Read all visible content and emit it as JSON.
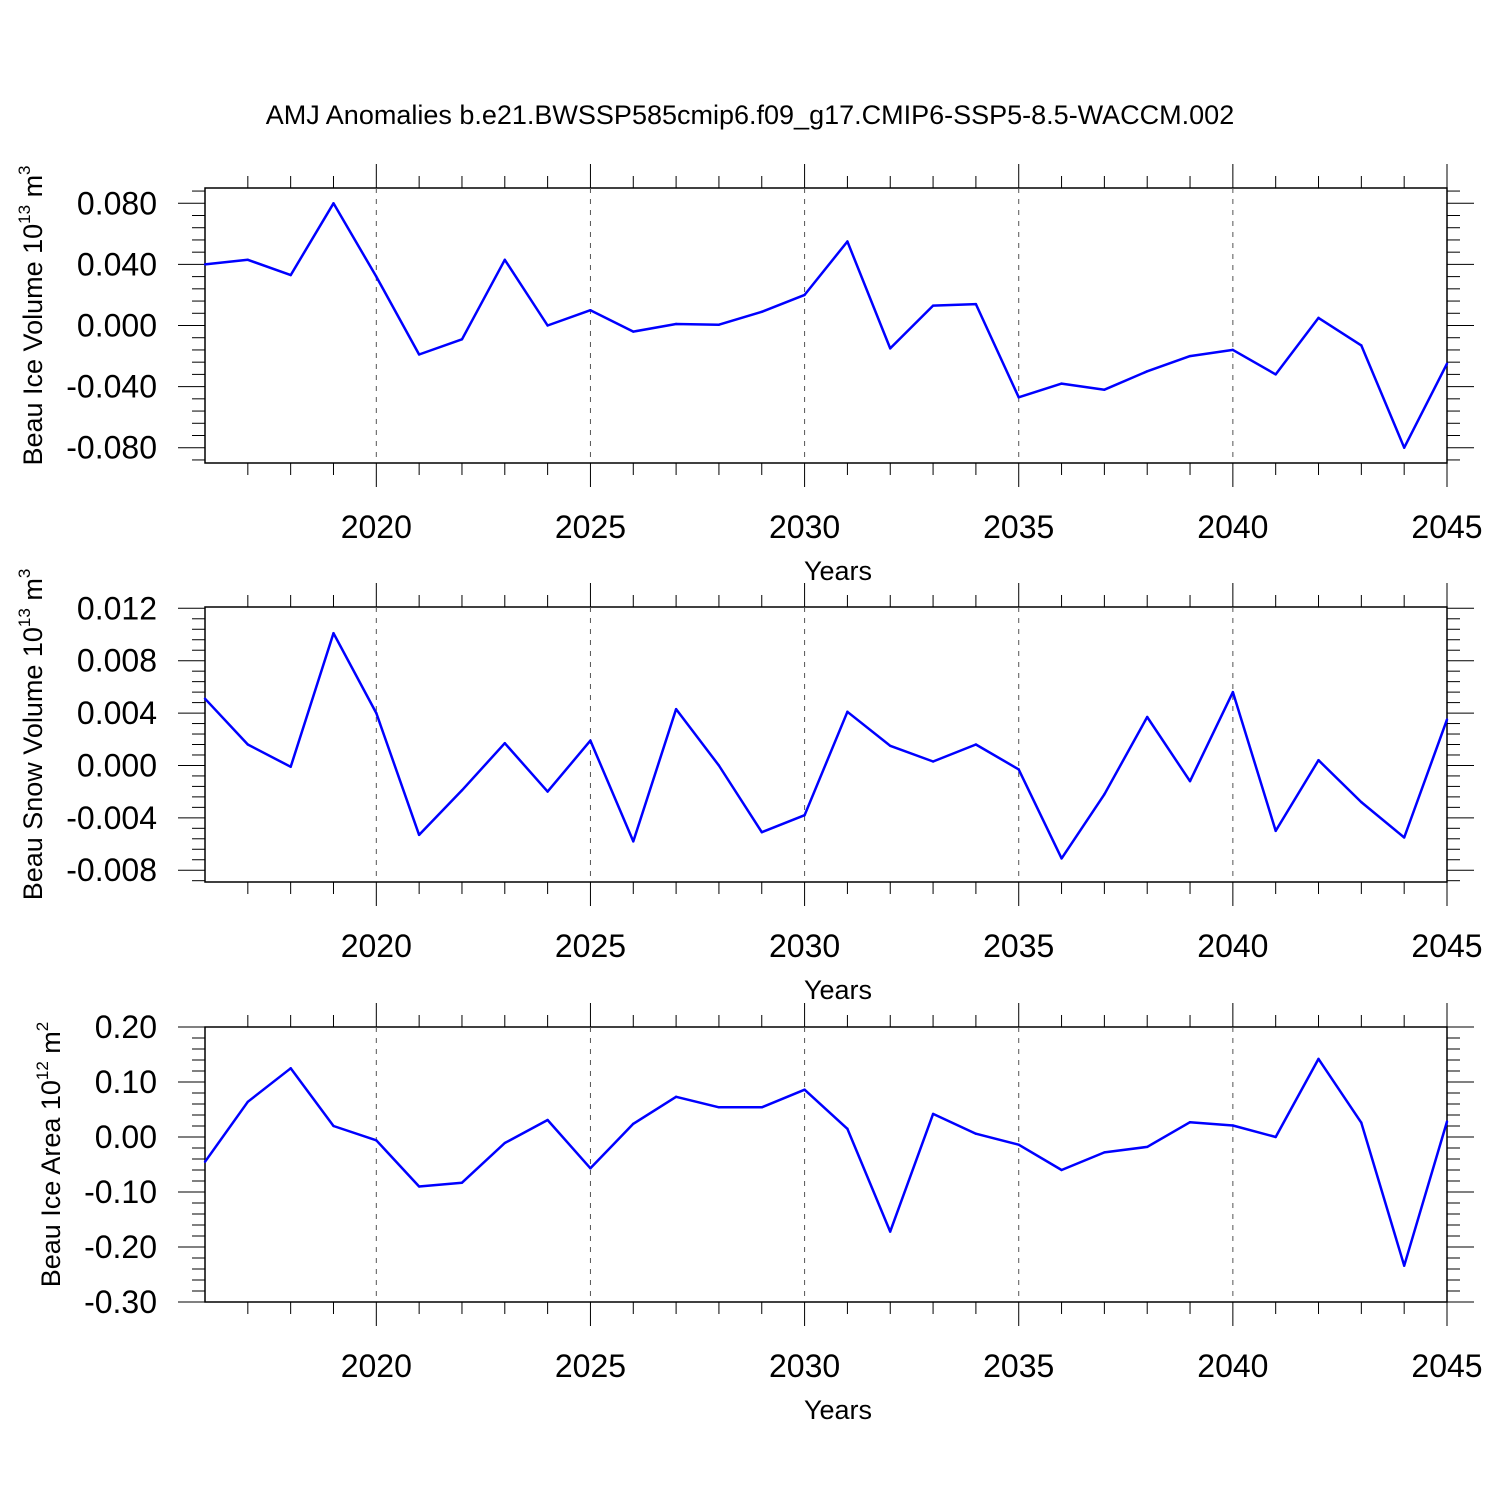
{
  "title": "AMJ Anomalies b.e21.BWSSP585cmip6.f09_g17.CMIP6-SSP5-8.5-WACCM.002",
  "colors": {
    "series": "#0000ff",
    "axis": "#000000",
    "grid": "#555555",
    "background": "#ffffff"
  },
  "chart_data": [
    {
      "type": "line",
      "xlabel": "Years",
      "ylabel": {
        "text": "Beau Ice Volume 10",
        "exp": "13",
        "unit": " m",
        "unit_exp": "3"
      },
      "xlim": [
        2016,
        2045
      ],
      "ylim": [
        -0.09,
        0.09
      ],
      "xticks": [
        2020,
        2025,
        2030,
        2035,
        2040,
        2045
      ],
      "yticks": [
        -0.08,
        -0.04,
        0.0,
        0.04,
        0.08
      ],
      "ytick_labels": [
        "-0.080",
        "-0.040",
        "0.000",
        "0.040",
        "0.080"
      ],
      "grid": "vertical dashed at major x ticks",
      "x": [
        2016,
        2017,
        2018,
        2019,
        2020,
        2021,
        2022,
        2023,
        2024,
        2025,
        2026,
        2027,
        2028,
        2029,
        2030,
        2031,
        2032,
        2033,
        2034,
        2035,
        2036,
        2037,
        2038,
        2039,
        2040,
        2041,
        2042,
        2043,
        2044,
        2045
      ],
      "values": [
        0.04,
        0.043,
        0.033,
        0.08,
        0.032,
        -0.019,
        -0.009,
        0.043,
        0.0,
        0.01,
        -0.004,
        0.001,
        0.0005,
        0.009,
        0.02,
        0.055,
        -0.015,
        0.013,
        0.014,
        -0.047,
        -0.038,
        -0.042,
        -0.03,
        -0.02,
        -0.016,
        -0.032,
        0.005,
        -0.013,
        -0.08,
        -0.025
      ]
    },
    {
      "type": "line",
      "xlabel": "Years",
      "ylabel": {
        "text": "Beau Snow Volume 10",
        "exp": "13",
        "unit": " m",
        "unit_exp": "3"
      },
      "xlim": [
        2016,
        2045
      ],
      "ylim": [
        -0.0089,
        0.0121
      ],
      "xticks": [
        2020,
        2025,
        2030,
        2035,
        2040,
        2045
      ],
      "yticks": [
        -0.008,
        -0.004,
        0.0,
        0.004,
        0.008,
        0.012
      ],
      "ytick_labels": [
        "-0.008",
        "-0.004",
        "0.000",
        "0.004",
        "0.008",
        "0.012"
      ],
      "grid": "vertical dashed at major x ticks",
      "x": [
        2016,
        2017,
        2018,
        2019,
        2020,
        2021,
        2022,
        2023,
        2024,
        2025,
        2026,
        2027,
        2028,
        2029,
        2030,
        2031,
        2032,
        2033,
        2034,
        2035,
        2036,
        2037,
        2038,
        2039,
        2040,
        2041,
        2042,
        2043,
        2044,
        2045
      ],
      "values": [
        0.0051,
        0.0016,
        -0.0001,
        0.0101,
        0.004,
        -0.0053,
        -0.0019,
        0.0017,
        -0.002,
        0.0019,
        -0.0058,
        0.0043,
        0.0,
        -0.0051,
        -0.0038,
        0.0041,
        0.0015,
        0.0003,
        0.0016,
        -0.0003,
        -0.0071,
        -0.0022,
        0.0037,
        -0.0012,
        0.0056,
        -0.005,
        0.0004,
        -0.0028,
        -0.0055,
        0.0035
      ]
    },
    {
      "type": "line",
      "xlabel": "Years",
      "ylabel": {
        "text": "Beau Ice Area 10",
        "exp": "12",
        "unit": " m",
        "unit_exp": "2"
      },
      "xlim": [
        2016,
        2045
      ],
      "ylim": [
        -0.3,
        0.2
      ],
      "xticks": [
        2020,
        2025,
        2030,
        2035,
        2040,
        2045
      ],
      "yticks": [
        -0.3,
        -0.2,
        -0.1,
        0.0,
        0.1,
        0.2
      ],
      "ytick_labels": [
        "-0.30",
        "-0.20",
        "-0.10",
        "0.00",
        "0.10",
        "0.20"
      ],
      "grid": "vertical dashed at major x ticks",
      "x": [
        2016,
        2017,
        2018,
        2019,
        2020,
        2021,
        2022,
        2023,
        2024,
        2025,
        2026,
        2027,
        2028,
        2029,
        2030,
        2031,
        2032,
        2033,
        2034,
        2035,
        2036,
        2037,
        2038,
        2039,
        2040,
        2041,
        2042,
        2043,
        2044,
        2045
      ],
      "values": [
        -0.045,
        0.064,
        0.125,
        0.02,
        -0.006,
        -0.09,
        -0.083,
        -0.011,
        0.031,
        -0.057,
        0.024,
        0.073,
        0.054,
        0.054,
        0.086,
        0.015,
        -0.172,
        0.042,
        0.006,
        -0.014,
        -0.06,
        -0.028,
        -0.018,
        0.027,
        0.021,
        0.0,
        0.142,
        0.026,
        -0.234,
        0.028
      ]
    }
  ]
}
